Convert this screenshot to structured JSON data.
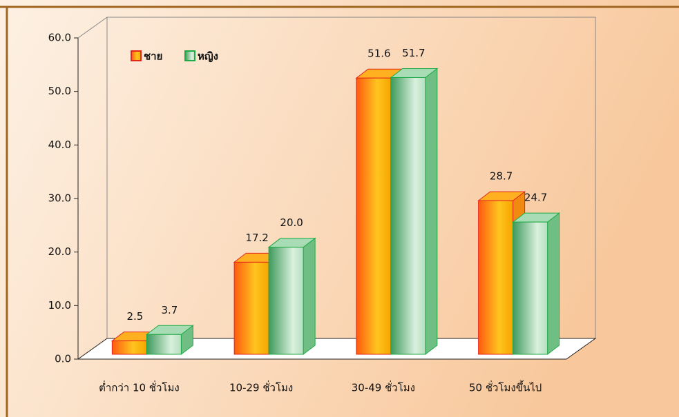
{
  "chart_data": {
    "type": "bar3d",
    "categories": [
      "ต่ำกว่า 10 ชั่วโมง",
      "10-29 ชั่วโมง",
      "30-49 ชั่วโมง",
      "50 ชั่วโมงขึ้นไป"
    ],
    "series": [
      {
        "name": "ชาย",
        "color": "#f7941d",
        "values": [
          2.5,
          17.2,
          51.6,
          28.7
        ],
        "value_labels": [
          "2.5",
          "17.2",
          "51.6",
          "28.7"
        ]
      },
      {
        "name": "หญิง",
        "color": "#7cc48e",
        "values": [
          3.7,
          20.0,
          51.7,
          24.7
        ],
        "value_labels": [
          "3.7",
          "20.0",
          "51.7",
          "24.7"
        ]
      }
    ],
    "ylim": [
      0,
      60
    ],
    "yticks": [
      {
        "value": 0,
        "label": "0.0"
      },
      {
        "value": 10,
        "label": "10.0"
      },
      {
        "value": 20,
        "label": "20.0"
      },
      {
        "value": 30,
        "label": "30.0"
      },
      {
        "value": 40,
        "label": "40.0"
      },
      {
        "value": 50,
        "label": "50.0"
      },
      {
        "value": 60,
        "label": "60.0"
      }
    ],
    "legend": "top-left"
  }
}
